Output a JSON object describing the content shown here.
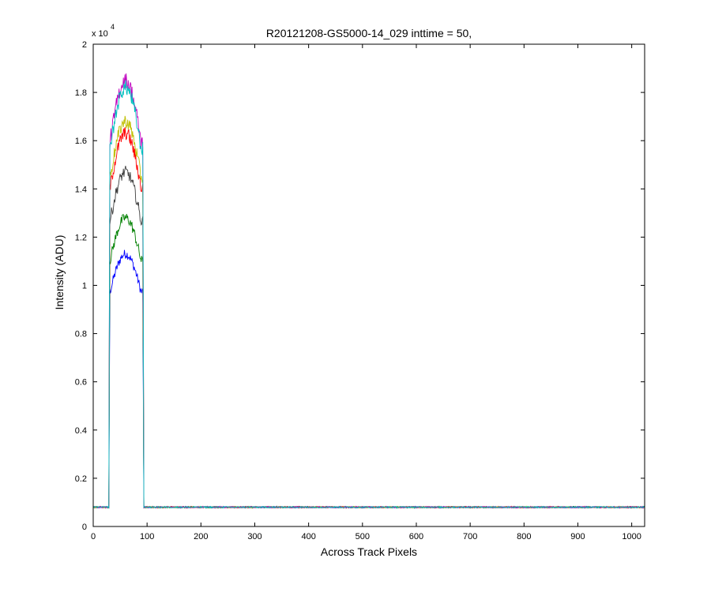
{
  "chart_data": {
    "type": "line",
    "title": "R20121208-GS5000-14_029 inttime = 50,",
    "xlabel": "Across Track Pixels",
    "ylabel": "Intensity (ADU)",
    "y_multiplier": {
      "base": "x 10",
      "exponent": "4"
    },
    "xlim": [
      0,
      1024
    ],
    "ylim": [
      0,
      2
    ],
    "xticks": [
      "0",
      "100",
      "200",
      "300",
      "400",
      "500",
      "600",
      "700",
      "800",
      "900",
      "1000"
    ],
    "yticks": [
      "0",
      "0.2",
      "0.4",
      "0.6",
      "0.8",
      "1",
      "1.2",
      "1.4",
      "1.6",
      "1.8",
      "2"
    ],
    "grid": false,
    "legend": "none",
    "baseline": 0.08,
    "plateau_x": [
      31,
      92
    ],
    "series": [
      {
        "color": "#0000ff",
        "peak": 1.13
      },
      {
        "color": "#008000",
        "peak": 1.28
      },
      {
        "color": "#404040",
        "peak": 1.47
      },
      {
        "color": "#ff0000",
        "peak": 1.63
      },
      {
        "color": "#bfbf00",
        "peak": 1.68
      },
      {
        "color": "#bf00bf",
        "peak": 1.85
      },
      {
        "color": "#00bfbf",
        "peak": 1.82
      }
    ]
  }
}
